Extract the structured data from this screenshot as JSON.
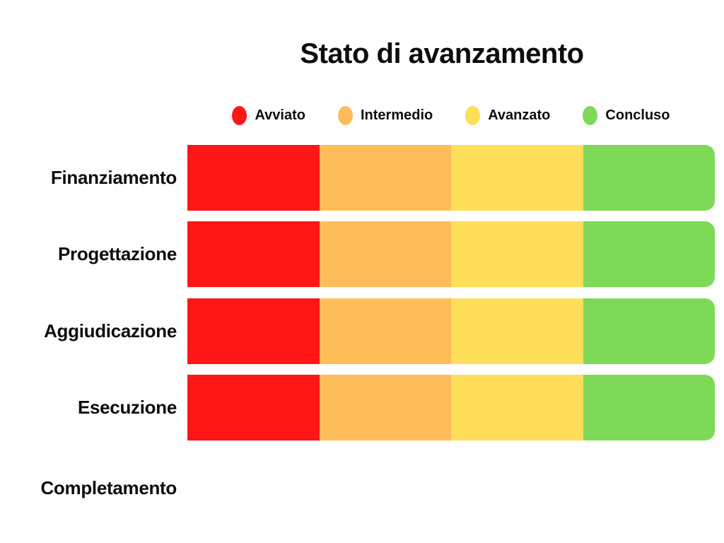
{
  "title": "Stato di avanzamento",
  "colors": {
    "background": "#ffffff",
    "text": "#0d0d0d",
    "avviato": "#FF1616",
    "intermedio": "#FFBD59",
    "avanzato": "#FFDE59",
    "concluso": "#7ED957"
  },
  "chart_data": {
    "type": "bar",
    "variant": "horizontal-stacked",
    "title": "Stato di avanzamento",
    "categories": [
      "Finanziamento",
      "Progettazione",
      "Aggiudicazione",
      "Esecuzione",
      "Completamento"
    ],
    "legend": [
      {
        "label": "Avviato",
        "color": "#FF1616"
      },
      {
        "label": "Intermedio",
        "color": "#FFBD59"
      },
      {
        "label": "Avanzato",
        "color": "#FFDE59"
      },
      {
        "label": "Concluso",
        "color": "#7ED957"
      }
    ],
    "series": [
      {
        "name": "Avviato",
        "color": "#FF1616",
        "values": [
          25,
          25,
          25,
          25,
          0
        ]
      },
      {
        "name": "Intermedio",
        "color": "#FFBD59",
        "values": [
          25,
          25,
          25,
          25,
          0
        ]
      },
      {
        "name": "Avanzato",
        "color": "#FFDE59",
        "values": [
          25,
          25,
          25,
          25,
          0
        ]
      },
      {
        "name": "Concluso",
        "color": "#7ED957",
        "values": [
          25,
          25,
          25,
          25,
          0
        ]
      }
    ],
    "legend_position": "top",
    "grid": false,
    "axes_visible": false,
    "value_labels_visible": false,
    "xlim_percent": [
      0,
      100
    ]
  }
}
